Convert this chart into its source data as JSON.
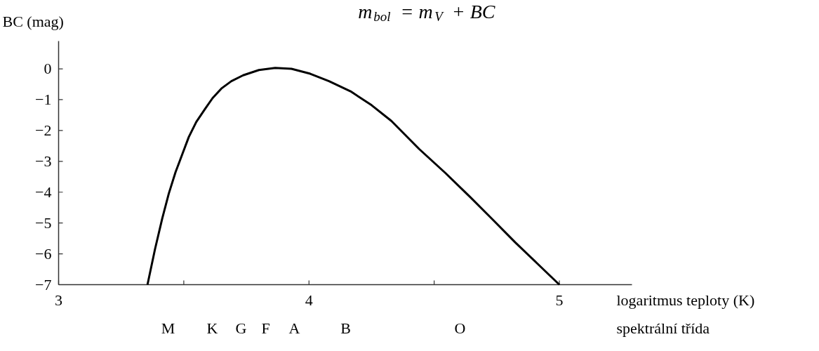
{
  "chart_data": {
    "type": "line",
    "title": "m$_{bol}$ = m$_{V}$ + BC",
    "xlabel": "logaritmus teploty (K)",
    "ylabel": "BC (mag)",
    "series": [
      {
        "color": "#000000",
        "x": [
          3.355,
          3.385,
          3.414,
          3.44,
          3.467,
          3.495,
          3.52,
          3.55,
          3.585,
          3.615,
          3.65,
          3.69,
          3.737,
          3.8,
          3.865,
          3.93,
          4.005,
          4.08,
          4.166,
          4.25,
          4.329,
          4.44,
          4.545,
          4.645,
          4.735,
          4.824,
          4.91,
          5.0
        ],
        "values": [
          -7,
          -5.85,
          -4.85,
          -4.05,
          -3.35,
          -2.75,
          -2.21,
          -1.72,
          -1.3,
          -0.95,
          -0.64,
          -0.4,
          -0.21,
          -0.04,
          0.03,
          0.0,
          -0.16,
          -0.4,
          -0.73,
          -1.18,
          -1.69,
          -2.6,
          -3.38,
          -4.17,
          -4.9,
          -5.63,
          -6.3,
          -7
        ]
      }
    ],
    "xlim": [
      3,
      5.29
    ],
    "ylim": [
      -7,
      0.9
    ],
    "xticks": [
      3,
      {
        "value": 3.5,
        "label": null
      },
      4,
      {
        "value": 4.5,
        "label": null
      },
      5
    ],
    "yticks": [
      0,
      {
        "value": -1,
        "label": "−1"
      },
      {
        "value": -2,
        "label": "−2"
      },
      {
        "value": -3,
        "label": "−3"
      },
      {
        "value": -4,
        "label": "−4"
      },
      {
        "value": -5,
        "label": "−5"
      },
      {
        "value": -6,
        "label": "−6"
      },
      {
        "value": -7,
        "label": "−7"
      }
    ],
    "annotations": [
      "M",
      "K",
      "G",
      "F",
      "A",
      "B",
      "O",
      "spektrální třída"
    ],
    "grid": false,
    "marker": "none",
    "line_style": "solid"
  }
}
